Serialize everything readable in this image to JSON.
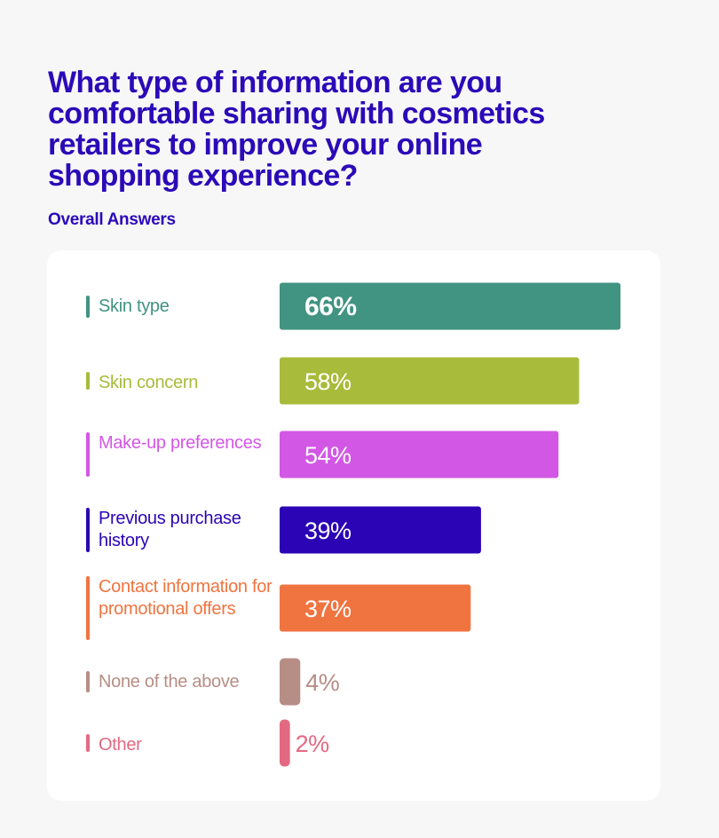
{
  "header": {
    "title": "What type of information are you comfortable sharing with cosmetics retailers to improve your online shopping experience?",
    "subtitle": "Overall Answers"
  },
  "chart_data": {
    "type": "bar",
    "orientation": "horizontal",
    "title": "What type of information are you comfortable sharing with cosmetics retailers to improve your online shopping experience?",
    "subtitle": "Overall Answers",
    "xlabel": "",
    "ylabel": "",
    "xlim": [
      0,
      66
    ],
    "grid": false,
    "legend": "none",
    "value_suffix": "%",
    "categories": [
      "Skin type",
      "Skin concern",
      "Make-up preferences",
      "Previous purchase history",
      "Contact information for promotional offers",
      "None of the above",
      "Other"
    ],
    "values": [
      66,
      58,
      54,
      39,
      37,
      4,
      2
    ],
    "value_labels": [
      "66%",
      "58%",
      "54%",
      "39%",
      "37%",
      "4%",
      "2%"
    ],
    "colors": [
      "#419382",
      "#a8bb3a",
      "#d257e5",
      "#2b05b5",
      "#f07440",
      "#b78e86",
      "#e36981"
    ]
  }
}
